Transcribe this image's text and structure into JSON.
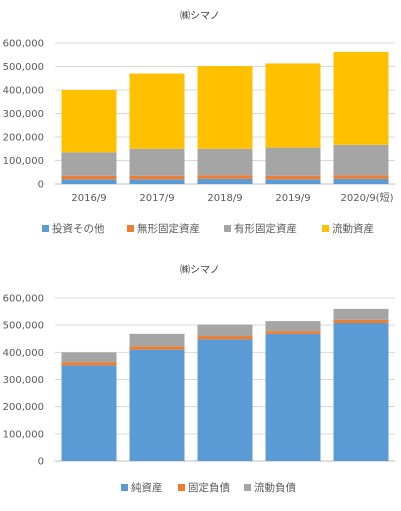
{
  "chart_data": [
    {
      "type": "bar",
      "stacked": true,
      "title": "㈱シマノ",
      "categories": [
        "2016/9",
        "2017/9",
        "2018/9",
        "2019/9",
        "2020/9(短)"
      ],
      "ylim": [
        0,
        600000
      ],
      "yticks": [
        "0",
        "100,000",
        "200,000",
        "300,000",
        "400,000",
        "500,000",
        "600,000"
      ],
      "grid": true,
      "legend": "bottom",
      "series": [
        {
          "name": "投資その他",
          "color": "#5b9bd5",
          "values": [
            20000,
            20000,
            22000,
            20000,
            22000
          ]
        },
        {
          "name": "無形固定資産",
          "color": "#ed7d31",
          "values": [
            15000,
            15000,
            15000,
            15000,
            15000
          ]
        },
        {
          "name": "有形固定資産",
          "color": "#a5a5a5",
          "values": [
            100000,
            115000,
            113000,
            120000,
            130000
          ]
        },
        {
          "name": "流動資産",
          "color": "#ffc000",
          "values": [
            265000,
            320000,
            352000,
            358000,
            395000
          ]
        }
      ]
    },
    {
      "type": "bar",
      "stacked": true,
      "title": "㈱シマノ",
      "categories": [
        "",
        "",
        "",
        "",
        ""
      ],
      "ylim": [
        0,
        600000
      ],
      "yticks": [
        "0",
        "100,000",
        "200,000",
        "300,000",
        "400,000",
        "500,000",
        "600,000"
      ],
      "grid": true,
      "legend": "bottom",
      "series": [
        {
          "name": "純資産",
          "color": "#5b9bd5",
          "values": [
            352000,
            410000,
            448000,
            468000,
            508000
          ]
        },
        {
          "name": "固定負債",
          "color": "#ed7d31",
          "values": [
            12000,
            12000,
            12000,
            10000,
            12000
          ]
        },
        {
          "name": "流動負債",
          "color": "#a5a5a5",
          "values": [
            36000,
            46000,
            42000,
            37000,
            40000
          ]
        }
      ]
    }
  ]
}
